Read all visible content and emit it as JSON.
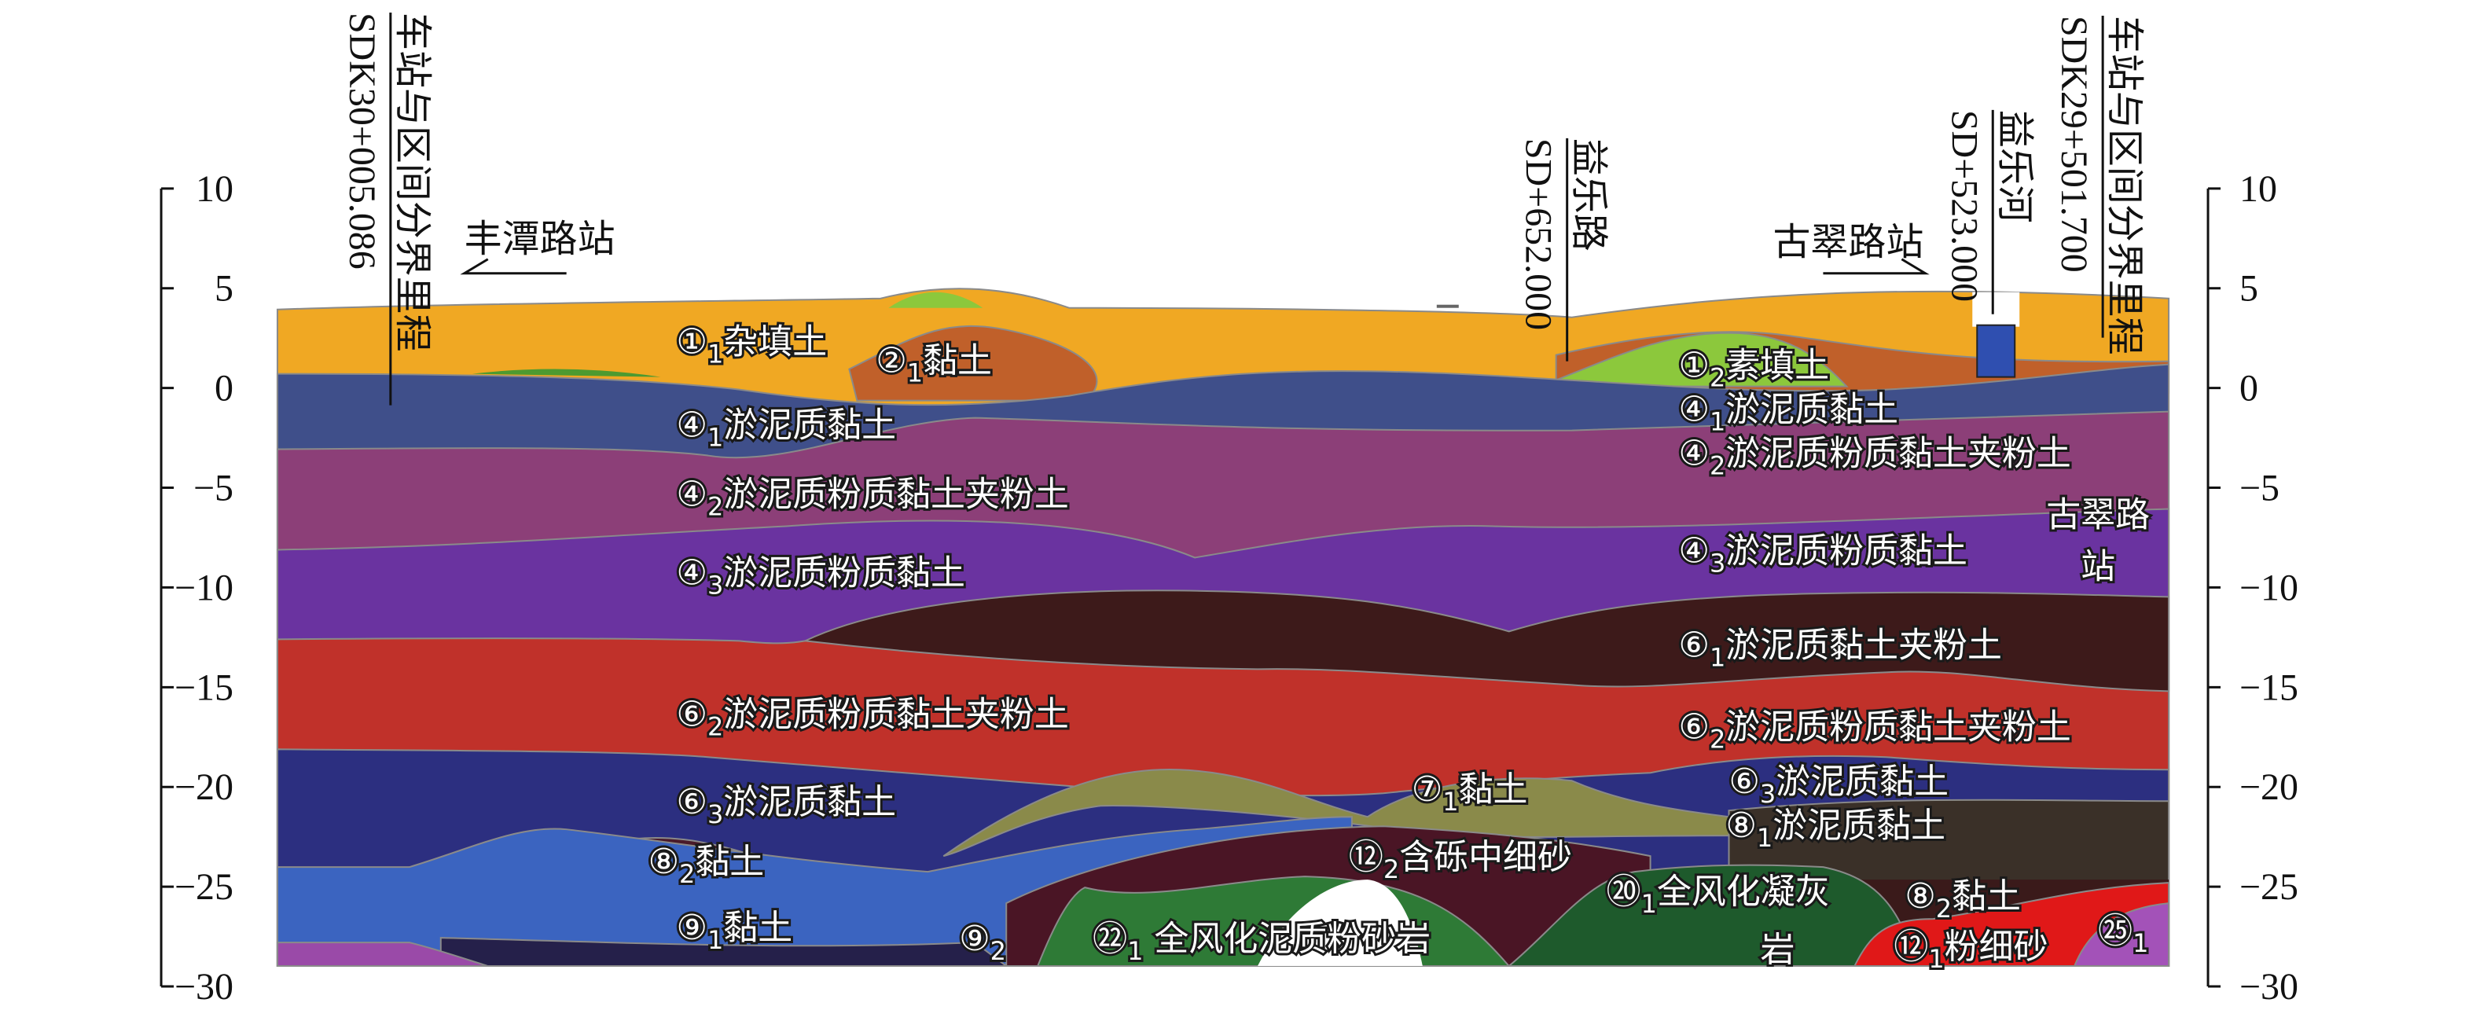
{
  "axis": {
    "ylim": [
      -30,
      10
    ],
    "ticks": [
      10,
      5,
      0,
      {
        "value": -5,
        "label": "−5"
      },
      {
        "value": -10,
        "label": "−10"
      },
      {
        "value": -15,
        "label": "−15"
      },
      {
        "value": -20,
        "label": "−20"
      },
      {
        "value": -25,
        "label": "−25"
      },
      {
        "value": -30,
        "label": "−30"
      }
    ]
  },
  "stations": [
    "丰潭路站",
    "古翠路站"
  ],
  "station_label": [
    "古翠路",
    "站"
  ],
  "chainages": [
    {
      "top": "车站与区间分界里程",
      "bottom": "SDK30+005.086"
    },
    {
      "top": "益乐路",
      "bottom": "SD+652.000"
    },
    {
      "top": "益乐河",
      "bottom": "SD+523.000"
    },
    {
      "top": "车站与区间分界里程",
      "bottom": "SDK29+501.700"
    }
  ],
  "layer_labels": [
    {
      "code": "①",
      "sub": "1",
      "name": "杂填土"
    },
    {
      "code": "②",
      "sub": "1",
      "name": "黏土"
    },
    {
      "code": "①",
      "sub": "2",
      "name": "素填土"
    },
    {
      "code": "④",
      "sub": "1",
      "name": "淤泥质黏土"
    },
    {
      "code": "④",
      "sub": "1",
      "name": "淤泥质黏土"
    },
    {
      "code": "④",
      "sub": "2",
      "name": "淤泥质粉质黏土夹粉土"
    },
    {
      "code": "④",
      "sub": "2",
      "name": "淤泥质粉质黏土夹粉土"
    },
    {
      "code": "④",
      "sub": "3",
      "name": "淤泥质粉质黏土"
    },
    {
      "code": "④",
      "sub": "3",
      "name": "淤泥质粉质黏土"
    },
    {
      "code": "⑥",
      "sub": "1",
      "name": "淤泥质黏土夹粉土"
    },
    {
      "code": "⑥",
      "sub": "2",
      "name": "淤泥质粉质黏土夹粉土"
    },
    {
      "code": "⑥",
      "sub": "2",
      "name": "淤泥质粉质黏土夹粉土"
    },
    {
      "code": "⑥",
      "sub": "3",
      "name": "淤泥质黏土"
    },
    {
      "code": "⑥",
      "sub": "3",
      "name": "淤泥质黏土"
    },
    {
      "code": "⑦",
      "sub": "1",
      "name": "黏土"
    },
    {
      "code": "⑧",
      "sub": "1",
      "name": "淤泥质黏土"
    },
    {
      "code": "⑫",
      "sub": "2",
      "name": "含砾中细砂"
    },
    {
      "code": "⑧",
      "sub": "2",
      "name": "黏土"
    },
    {
      "code": "⑧",
      "sub": "2",
      "name": "黏土"
    },
    {
      "code": "⑳",
      "sub": "1",
      "name": "全风化凝灰",
      "name2": "岩"
    },
    {
      "code": "⑨",
      "sub": "1",
      "name": "黏土"
    },
    {
      "code": "⑨",
      "sub": "2"
    },
    {
      "code": "㉒",
      "sub": "1",
      "name": " 全风化泥质粉砂岩"
    },
    {
      "code": "⑫",
      "sub": "1",
      "name": "粉细砂"
    },
    {
      "code": "㉕",
      "sub": "1"
    }
  ]
}
